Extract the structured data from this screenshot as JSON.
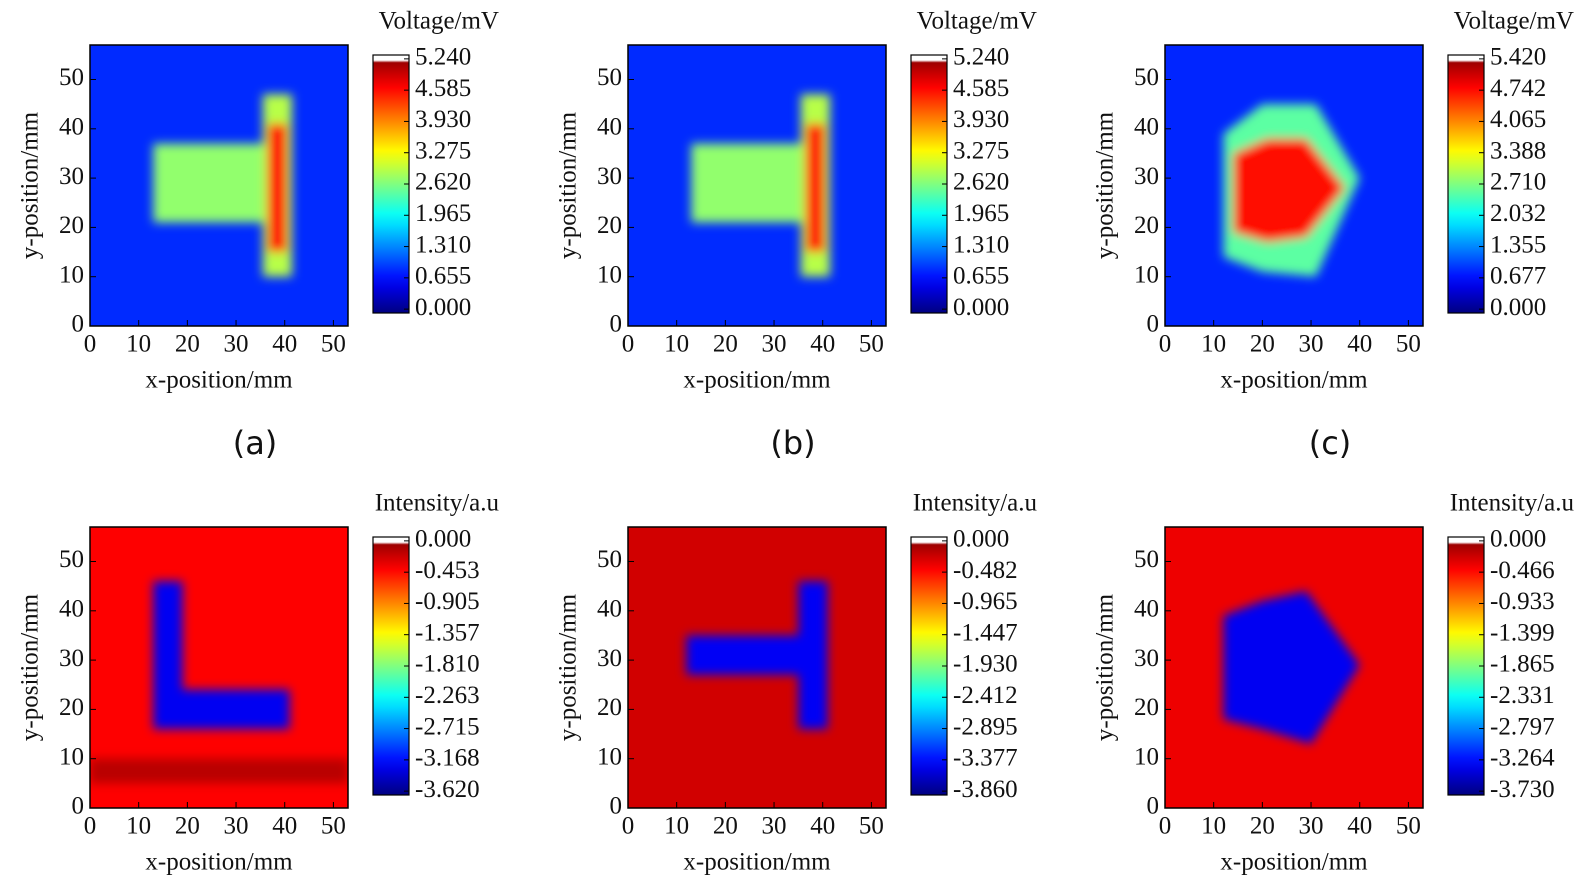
{
  "chart_data": [
    {
      "type": "heatmap",
      "xlabel": "x-position/mm",
      "ylabel": "y-position/mm",
      "colorbar_label": "Voltage/mV",
      "caption": "(a)",
      "xlim": [
        0,
        53
      ],
      "ylim": [
        0,
        57
      ],
      "xticks": [
        0,
        10,
        20,
        30,
        40,
        50
      ],
      "yticks": [
        0,
        10,
        20,
        30,
        40,
        50
      ],
      "clim": [
        0,
        5.24
      ],
      "cticks": [
        {
          "value": 0,
          "label": "0.000"
        },
        0.655,
        {
          "value": 1.31,
          "label": "1.310"
        },
        1.965,
        {
          "value": 2.62,
          "label": "2.620"
        },
        3.275,
        {
          "value": 3.93,
          "label": "3.930"
        },
        4.585,
        {
          "value": 5.24,
          "label": "5.240"
        }
      ],
      "background": 0.9,
      "regions": [
        {
          "polygon": [
            [
              13,
              21
            ],
            [
              37,
              21
            ],
            [
              37,
              37
            ],
            [
              13,
              37
            ]
          ],
          "value": 2.8
        },
        {
          "polygon": [
            [
              35.5,
              10
            ],
            [
              41.5,
              10
            ],
            [
              41.5,
              47
            ],
            [
              35.5,
              47
            ]
          ],
          "value": 3.0
        },
        {
          "polygon": [
            [
              36.5,
              15
            ],
            [
              40.5,
              15
            ],
            [
              40.5,
              41
            ],
            [
              36.5,
              41
            ]
          ],
          "value": 4.7
        }
      ]
    },
    {
      "type": "heatmap",
      "xlabel": "x-position/mm",
      "ylabel": "y-position/mm",
      "colorbar_label": "Voltage/mV",
      "caption": "(b)",
      "xlim": [
        0,
        53
      ],
      "ylim": [
        0,
        57
      ],
      "xticks": [
        0,
        10,
        20,
        30,
        40,
        50
      ],
      "yticks": [
        0,
        10,
        20,
        30,
        40,
        50
      ],
      "clim": [
        0,
        5.24
      ],
      "cticks": [
        {
          "value": 0,
          "label": "0.000"
        },
        0.655,
        {
          "value": 1.31,
          "label": "1.310"
        },
        1.965,
        {
          "value": 2.62,
          "label": "2.620"
        },
        3.275,
        {
          "value": 3.93,
          "label": "3.930"
        },
        4.585,
        {
          "value": 5.24,
          "label": "5.240"
        }
      ],
      "background": 0.9,
      "regions": [
        {
          "polygon": [
            [
              13,
              21
            ],
            [
              37,
              21
            ],
            [
              37,
              37
            ],
            [
              13,
              37
            ]
          ],
          "value": 2.8
        },
        {
          "polygon": [
            [
              35.5,
              10
            ],
            [
              41.5,
              10
            ],
            [
              41.5,
              47
            ],
            [
              35.5,
              47
            ]
          ],
          "value": 3.0
        },
        {
          "polygon": [
            [
              36.5,
              15
            ],
            [
              40.5,
              15
            ],
            [
              40.5,
              41
            ],
            [
              36.5,
              41
            ]
          ],
          "value": 4.6
        }
      ]
    },
    {
      "type": "heatmap",
      "xlabel": "x-position/mm",
      "ylabel": "y-position/mm",
      "colorbar_label": "Voltage/mV",
      "caption": "(c)",
      "xlim": [
        0,
        53
      ],
      "ylim": [
        0,
        57
      ],
      "xticks": [
        0,
        10,
        20,
        30,
        40,
        50
      ],
      "yticks": [
        0,
        10,
        20,
        30,
        40,
        50
      ],
      "clim": [
        0,
        5.42
      ],
      "cticks": [
        {
          "value": 0,
          "label": "0.000"
        },
        0.677,
        1.355,
        2.032,
        {
          "value": 2.71,
          "label": "2.710"
        },
        3.388,
        4.065,
        4.742,
        {
          "value": 5.42,
          "label": "5.420"
        }
      ],
      "background": 0.9,
      "regions": [
        {
          "polygon": [
            [
              12,
              14
            ],
            [
              12,
              39
            ],
            [
              20,
              45
            ],
            [
              31,
              45
            ],
            [
              40,
              30
            ],
            [
              31,
              10
            ],
            [
              20,
              11
            ]
          ],
          "value": 2.6
        },
        {
          "polygon": [
            [
              14,
              19
            ],
            [
              14,
              35
            ],
            [
              21,
              38
            ],
            [
              29,
              38
            ],
            [
              37,
              28
            ],
            [
              29,
              18
            ],
            [
              21,
              17
            ]
          ],
          "value": 4.8
        }
      ]
    },
    {
      "type": "heatmap",
      "xlabel": "x-position/mm",
      "ylabel": "y-position/mm",
      "colorbar_label": "Intensity/a.u",
      "xlim": [
        0,
        53
      ],
      "ylim": [
        0,
        57
      ],
      "xticks": [
        0,
        10,
        20,
        30,
        40,
        50
      ],
      "yticks": [
        0,
        10,
        20,
        30,
        40,
        50
      ],
      "clim": [
        -3.62,
        0
      ],
      "cticks": [
        {
          "value": 0,
          "label": "0.000"
        },
        -0.453,
        -0.905,
        -1.357,
        {
          "value": -1.81,
          "label": "-1.810"
        },
        -2.263,
        -2.715,
        -3.168,
        {
          "value": -3.62,
          "label": "-3.620"
        }
      ],
      "background": -0.35,
      "regions": [
        {
          "polygon": [
            [
              0,
              5
            ],
            [
              53,
              5
            ],
            [
              53,
              10
            ],
            [
              0,
              10
            ]
          ],
          "value": -0.1
        },
        {
          "polygon": [
            [
              13,
              16
            ],
            [
              41,
              16
            ],
            [
              41,
              24
            ],
            [
              19,
              24
            ],
            [
              19,
              46
            ],
            [
              13,
              46
            ]
          ],
          "value": -3.2
        }
      ]
    },
    {
      "type": "heatmap",
      "xlabel": "x-position/mm",
      "ylabel": "y-position/mm",
      "colorbar_label": "Intensity/a.u",
      "xlim": [
        0,
        53
      ],
      "ylim": [
        0,
        57
      ],
      "xticks": [
        0,
        10,
        20,
        30,
        40,
        50
      ],
      "yticks": [
        0,
        10,
        20,
        30,
        40,
        50
      ],
      "clim": [
        -3.86,
        0
      ],
      "cticks": [
        {
          "value": 0,
          "label": "0.000"
        },
        -0.482,
        -0.965,
        -1.447,
        {
          "value": -1.93,
          "label": "-1.930"
        },
        -2.412,
        -2.895,
        -3.377,
        {
          "value": -3.86,
          "label": "-3.860"
        }
      ],
      "background": -0.2,
      "regions": [
        {
          "polygon": [
            [
              12,
              27
            ],
            [
              35,
              27
            ],
            [
              35,
              16
            ],
            [
              41,
              16
            ],
            [
              41,
              46
            ],
            [
              35,
              46
            ],
            [
              35,
              35
            ],
            [
              12,
              35
            ]
          ],
          "value": -3.4
        }
      ]
    },
    {
      "type": "heatmap",
      "xlabel": "x-position/mm",
      "ylabel": "y-position/mm",
      "colorbar_label": "Intensity/a.u",
      "xlim": [
        0,
        53
      ],
      "ylim": [
        0,
        57
      ],
      "xticks": [
        0,
        10,
        20,
        30,
        40,
        50
      ],
      "yticks": [
        0,
        10,
        20,
        30,
        40,
        50
      ],
      "clim": [
        -3.73,
        0
      ],
      "cticks": [
        {
          "value": 0,
          "label": "0.000"
        },
        -0.466,
        -0.933,
        -1.399,
        -1.865,
        -2.331,
        -2.797,
        -3.264,
        {
          "value": -3.73,
          "label": "-3.730"
        }
      ],
      "background": -0.3,
      "regions": [
        {
          "polygon": [
            [
              12,
              18
            ],
            [
              12,
              39
            ],
            [
              20,
              42
            ],
            [
              29,
              44
            ],
            [
              40,
              29
            ],
            [
              30,
              13
            ],
            [
              20,
              16
            ]
          ],
          "value": -3.3
        }
      ]
    }
  ]
}
